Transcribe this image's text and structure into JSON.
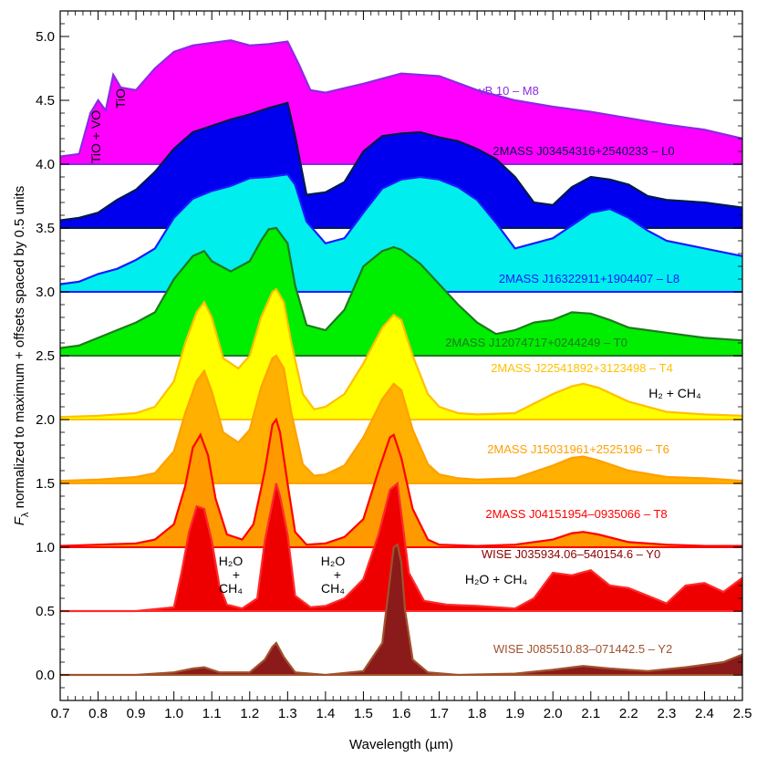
{
  "chart_data": {
    "type": "area",
    "xlabel": "Wavelength (µm)",
    "ylabel_main": "F",
    "ylabel_sub": "λ",
    "ylabel_rest": " normalized to maximum + offsets spaced by 0.5 units",
    "xlim": [
      0.7,
      2.5
    ],
    "ylim": [
      -0.2,
      5.2
    ],
    "xticks": [
      0.7,
      0.8,
      0.9,
      1.0,
      1.1,
      1.2,
      1.3,
      1.4,
      1.5,
      1.6,
      1.7,
      1.8,
      1.9,
      2.0,
      2.1,
      2.2,
      2.3,
      2.4,
      2.5
    ],
    "xtick_labels": [
      "0.7",
      "0.8",
      "0.9",
      "1.0",
      "1.1",
      "1.2",
      "1.3",
      "1.4",
      "1.5",
      "1.6",
      "1.7",
      "1.8",
      "1.9",
      "2.0",
      "2.1",
      "2.2",
      "2.3",
      "2.4",
      "2.5"
    ],
    "yticks": [
      0.0,
      0.5,
      1.0,
      1.5,
      2.0,
      2.5,
      3.0,
      3.5,
      4.0,
      4.5,
      5.0
    ],
    "ytick_labels": [
      "0.0",
      "0.5",
      "1.0",
      "1.5",
      "2.0",
      "2.5",
      "3.0",
      "3.5",
      "4.0",
      "4.5",
      "5.0"
    ],
    "grid": false,
    "series": [
      {
        "name": "vB 10 – M8",
        "offset": 4.0,
        "fill": "#ff00ff",
        "stroke": "#8a2be2",
        "label_color": "#8a2be2",
        "x": [
          0.7,
          0.75,
          0.78,
          0.8,
          0.82,
          0.84,
          0.86,
          0.9,
          0.95,
          1.0,
          1.05,
          1.1,
          1.15,
          1.2,
          1.25,
          1.3,
          1.33,
          1.36,
          1.4,
          1.5,
          1.6,
          1.7,
          1.8,
          1.9,
          2.0,
          2.1,
          2.2,
          2.3,
          2.4,
          2.5
        ],
        "y": [
          0.06,
          0.08,
          0.4,
          0.5,
          0.42,
          0.7,
          0.6,
          0.58,
          0.75,
          0.88,
          0.93,
          0.95,
          0.97,
          0.93,
          0.94,
          0.96,
          0.78,
          0.58,
          0.56,
          0.63,
          0.71,
          0.69,
          0.58,
          0.5,
          0.45,
          0.41,
          0.36,
          0.31,
          0.27,
          0.2
        ]
      },
      {
        "name": "2MASS J03454316+2540233 – L0",
        "offset": 3.5,
        "fill": "#0000ee",
        "stroke": "#001a4d",
        "label_color": "#001a4d",
        "x": [
          0.7,
          0.75,
          0.8,
          0.85,
          0.9,
          0.95,
          1.0,
          1.05,
          1.1,
          1.15,
          1.2,
          1.25,
          1.3,
          1.32,
          1.35,
          1.4,
          1.45,
          1.5,
          1.55,
          1.6,
          1.65,
          1.7,
          1.75,
          1.8,
          1.85,
          1.9,
          1.95,
          2.0,
          2.05,
          2.1,
          2.15,
          2.2,
          2.25,
          2.3,
          2.4,
          2.5
        ],
        "y": [
          0.06,
          0.08,
          0.12,
          0.22,
          0.3,
          0.44,
          0.62,
          0.75,
          0.8,
          0.85,
          0.89,
          0.94,
          0.98,
          0.72,
          0.26,
          0.28,
          0.36,
          0.6,
          0.72,
          0.74,
          0.75,
          0.71,
          0.68,
          0.62,
          0.54,
          0.4,
          0.2,
          0.18,
          0.32,
          0.4,
          0.38,
          0.34,
          0.25,
          0.22,
          0.2,
          0.16
        ]
      },
      {
        "name": "2MASS J16322911+1904407 – L8",
        "offset": 3.0,
        "fill": "#00eeee",
        "stroke": "#1a1aff",
        "label_color": "#1a1aff",
        "x": [
          0.7,
          0.75,
          0.8,
          0.85,
          0.9,
          0.95,
          1.0,
          1.05,
          1.1,
          1.15,
          1.2,
          1.25,
          1.3,
          1.32,
          1.35,
          1.4,
          1.45,
          1.5,
          1.55,
          1.6,
          1.65,
          1.7,
          1.75,
          1.8,
          1.85,
          1.9,
          1.95,
          2.0,
          2.05,
          2.1,
          2.15,
          2.2,
          2.25,
          2.3,
          2.4,
          2.5
        ],
        "y": [
          0.06,
          0.08,
          0.14,
          0.18,
          0.25,
          0.34,
          0.58,
          0.73,
          0.79,
          0.83,
          0.89,
          0.9,
          0.92,
          0.84,
          0.55,
          0.38,
          0.42,
          0.62,
          0.81,
          0.88,
          0.9,
          0.88,
          0.82,
          0.72,
          0.54,
          0.34,
          0.38,
          0.42,
          0.52,
          0.62,
          0.65,
          0.58,
          0.48,
          0.4,
          0.34,
          0.28
        ]
      },
      {
        "name": "2MASS J12074717+0244249 – T0",
        "offset": 2.5,
        "fill": "#00ee00",
        "stroke": "#1e7a1e",
        "label_color": "#1e7a1e",
        "x": [
          0.7,
          0.75,
          0.8,
          0.85,
          0.9,
          0.95,
          1.0,
          1.05,
          1.08,
          1.1,
          1.15,
          1.2,
          1.23,
          1.25,
          1.27,
          1.3,
          1.32,
          1.35,
          1.4,
          1.45,
          1.5,
          1.55,
          1.58,
          1.6,
          1.65,
          1.7,
          1.75,
          1.8,
          1.85,
          1.9,
          1.95,
          2.0,
          2.05,
          2.1,
          2.15,
          2.2,
          2.25,
          2.3,
          2.4,
          2.5
        ],
        "y": [
          0.06,
          0.08,
          0.14,
          0.2,
          0.26,
          0.34,
          0.6,
          0.78,
          0.82,
          0.74,
          0.66,
          0.74,
          0.9,
          0.99,
          1.0,
          0.88,
          0.55,
          0.24,
          0.2,
          0.36,
          0.7,
          0.82,
          0.85,
          0.83,
          0.72,
          0.56,
          0.4,
          0.26,
          0.17,
          0.2,
          0.26,
          0.28,
          0.34,
          0.33,
          0.28,
          0.22,
          0.2,
          0.18,
          0.14,
          0.12
        ]
      },
      {
        "name": "2MASS J22541892+3123498 – T4",
        "offset": 2.0,
        "fill": "#ffff00",
        "stroke": "#ffc000",
        "label_color": "#ffc000",
        "x": [
          0.7,
          0.8,
          0.9,
          0.95,
          1.0,
          1.03,
          1.06,
          1.08,
          1.1,
          1.13,
          1.17,
          1.2,
          1.23,
          1.26,
          1.27,
          1.29,
          1.31,
          1.34,
          1.37,
          1.4,
          1.45,
          1.5,
          1.55,
          1.58,
          1.6,
          1.63,
          1.67,
          1.7,
          1.75,
          1.8,
          1.9,
          2.0,
          2.05,
          2.08,
          2.12,
          2.2,
          2.3,
          2.4,
          2.5
        ],
        "y": [
          0.02,
          0.03,
          0.05,
          0.1,
          0.3,
          0.6,
          0.84,
          0.92,
          0.8,
          0.48,
          0.4,
          0.5,
          0.8,
          1.0,
          1.02,
          0.92,
          0.6,
          0.2,
          0.08,
          0.1,
          0.2,
          0.44,
          0.72,
          0.82,
          0.78,
          0.5,
          0.2,
          0.1,
          0.05,
          0.04,
          0.05,
          0.2,
          0.26,
          0.28,
          0.25,
          0.14,
          0.06,
          0.04,
          0.03
        ]
      },
      {
        "name": "2MASS J15031961+2525196 – T6",
        "offset": 1.5,
        "fill": "#ffb000",
        "stroke": "#ffa000",
        "label_color": "#ffa000",
        "x": [
          0.7,
          0.8,
          0.9,
          0.95,
          1.0,
          1.03,
          1.06,
          1.08,
          1.1,
          1.13,
          1.17,
          1.2,
          1.23,
          1.26,
          1.27,
          1.29,
          1.31,
          1.34,
          1.37,
          1.4,
          1.45,
          1.5,
          1.55,
          1.58,
          1.6,
          1.63,
          1.67,
          1.7,
          1.75,
          1.8,
          1.9,
          2.0,
          2.05,
          2.08,
          2.12,
          2.2,
          2.3,
          2.4,
          2.5
        ],
        "y": [
          0.02,
          0.03,
          0.05,
          0.08,
          0.25,
          0.55,
          0.8,
          0.88,
          0.72,
          0.4,
          0.32,
          0.42,
          0.75,
          0.98,
          1.0,
          0.9,
          0.55,
          0.15,
          0.06,
          0.07,
          0.14,
          0.36,
          0.66,
          0.78,
          0.73,
          0.42,
          0.15,
          0.07,
          0.04,
          0.03,
          0.04,
          0.14,
          0.2,
          0.21,
          0.18,
          0.1,
          0.05,
          0.04,
          0.02
        ]
      },
      {
        "name": "2MASS J04151954–0935066 – T8",
        "offset": 1.0,
        "fill": "#ff9900",
        "stroke": "#ff0000",
        "label_color": "#ff0000",
        "x": [
          0.7,
          0.8,
          0.9,
          0.95,
          1.0,
          1.03,
          1.05,
          1.07,
          1.09,
          1.11,
          1.14,
          1.18,
          1.21,
          1.24,
          1.26,
          1.27,
          1.28,
          1.3,
          1.32,
          1.35,
          1.4,
          1.45,
          1.5,
          1.54,
          1.57,
          1.58,
          1.6,
          1.63,
          1.67,
          1.7,
          1.8,
          1.9,
          2.0,
          2.05,
          2.08,
          2.12,
          2.2,
          2.3,
          2.4,
          2.5
        ],
        "y": [
          0.01,
          0.02,
          0.03,
          0.06,
          0.18,
          0.48,
          0.78,
          0.88,
          0.72,
          0.38,
          0.1,
          0.06,
          0.18,
          0.6,
          0.96,
          1.0,
          0.9,
          0.5,
          0.12,
          0.02,
          0.03,
          0.08,
          0.22,
          0.6,
          0.86,
          0.88,
          0.7,
          0.3,
          0.06,
          0.02,
          0.01,
          0.02,
          0.06,
          0.11,
          0.12,
          0.1,
          0.04,
          0.02,
          0.01,
          0.01
        ]
      },
      {
        "name": "WISE J035934.06–540154.6 – Y0",
        "offset": 0.5,
        "fill": "#ee0000",
        "stroke": "#ff2a2a",
        "label_color": "#8b0000",
        "x": [
          0.7,
          0.9,
          1.0,
          1.02,
          1.04,
          1.06,
          1.08,
          1.1,
          1.12,
          1.14,
          1.18,
          1.22,
          1.24,
          1.26,
          1.27,
          1.28,
          1.3,
          1.32,
          1.36,
          1.4,
          1.45,
          1.5,
          1.54,
          1.57,
          1.59,
          1.62,
          1.66,
          1.72,
          1.8,
          1.9,
          1.95,
          2.0,
          2.05,
          2.1,
          2.15,
          2.2,
          2.25,
          2.3,
          2.35,
          2.4,
          2.45,
          2.5
        ],
        "y": [
          0.0,
          0.0,
          0.03,
          0.3,
          0.62,
          0.82,
          0.8,
          0.55,
          0.2,
          0.05,
          0.02,
          0.1,
          0.55,
          0.85,
          1.0,
          0.9,
          0.6,
          0.12,
          0.03,
          0.04,
          0.1,
          0.25,
          0.6,
          0.95,
          1.0,
          0.3,
          0.08,
          0.05,
          0.04,
          0.02,
          0.1,
          0.3,
          0.28,
          0.32,
          0.2,
          0.18,
          0.12,
          0.06,
          0.2,
          0.22,
          0.15,
          0.26
        ]
      },
      {
        "name": "WISE J085510.83–071442.5 – Y2",
        "offset": 0.0,
        "fill": "#8b1a1a",
        "stroke": "#a0522d",
        "label_color": "#a0522d",
        "x": [
          0.7,
          0.9,
          1.0,
          1.05,
          1.08,
          1.12,
          1.2,
          1.24,
          1.26,
          1.27,
          1.29,
          1.32,
          1.4,
          1.5,
          1.55,
          1.57,
          1.58,
          1.59,
          1.6,
          1.61,
          1.63,
          1.67,
          1.75,
          1.9,
          2.0,
          2.08,
          2.15,
          2.25,
          2.35,
          2.45,
          2.5
        ],
        "y": [
          0.0,
          0.0,
          0.02,
          0.05,
          0.06,
          0.02,
          0.02,
          0.12,
          0.22,
          0.25,
          0.14,
          0.02,
          0.0,
          0.03,
          0.25,
          0.75,
          1.0,
          1.02,
          0.88,
          0.5,
          0.12,
          0.02,
          0.0,
          0.01,
          0.04,
          0.07,
          0.05,
          0.03,
          0.06,
          0.1,
          0.16
        ]
      }
    ],
    "annotations": [
      {
        "id": "tio-vo",
        "text": "TiO + VO"
      },
      {
        "id": "tio",
        "text": "TiO"
      },
      {
        "id": "h2-ch4-t4",
        "text": "H₂ + CH₄"
      },
      {
        "id": "h2o-ch4-1-a",
        "text": "H₂O"
      },
      {
        "id": "h2o-ch4-1-b",
        "text": "+"
      },
      {
        "id": "h2o-ch4-1-c",
        "text": "CH₄"
      },
      {
        "id": "h2o-ch4-2-a",
        "text": "H₂O"
      },
      {
        "id": "h2o-ch4-2-b",
        "text": "+"
      },
      {
        "id": "h2o-ch4-2-c",
        "text": "CH₄"
      },
      {
        "id": "h2o-ch4-3",
        "text": "H₂O + CH₄"
      }
    ]
  }
}
